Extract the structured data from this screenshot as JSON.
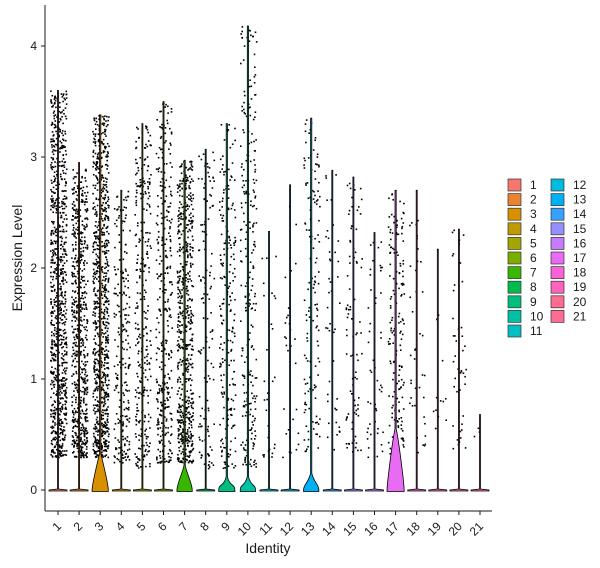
{
  "chart_data": {
    "type": "violin",
    "xlabel": "Identity",
    "ylabel": "Expression Level",
    "ylim": [
      -0.2,
      4.25
    ],
    "yticks": [
      0,
      1,
      2,
      3,
      4
    ],
    "grid": false,
    "legend_position": "right",
    "legend_columns": 2,
    "categories": [
      "1",
      "2",
      "3",
      "4",
      "5",
      "6",
      "7",
      "8",
      "9",
      "10",
      "11",
      "12",
      "13",
      "14",
      "15",
      "16",
      "17",
      "18",
      "19",
      "20",
      "21"
    ],
    "colors": [
      "#F8766D",
      "#EA8331",
      "#D89000",
      "#C09B00",
      "#A3A500",
      "#7CAE00",
      "#39B600",
      "#00BB4E",
      "#00BF7D",
      "#00C1A3",
      "#00BFC4",
      "#00BAE0",
      "#00B0F6",
      "#35A2FF",
      "#9590FF",
      "#C77CFF",
      "#E76BF3",
      "#FA62DB",
      "#FF62BC",
      "#FF6C91",
      "#FF6C91"
    ],
    "violins": [
      {
        "id": "1",
        "max": 3.6,
        "n_points": 900,
        "hump_height": 0.0,
        "hump_width": 0.0,
        "point_min": 0.3,
        "point_max": 3.6
      },
      {
        "id": "2",
        "max": 2.95,
        "n_points": 650,
        "hump_height": 0.0,
        "hump_width": 0.0,
        "point_min": 0.3,
        "point_max": 2.9
      },
      {
        "id": "3",
        "max": 3.38,
        "n_points": 900,
        "hump_height": 0.33,
        "hump_width": 0.9,
        "point_min": 0.3,
        "point_max": 3.38
      },
      {
        "id": "4",
        "max": 2.7,
        "n_points": 230,
        "hump_height": 0.0,
        "hump_width": 0.0,
        "point_min": 0.25,
        "point_max": 2.7
      },
      {
        "id": "5",
        "max": 3.3,
        "n_points": 300,
        "hump_height": 0.0,
        "hump_width": 0.0,
        "point_min": 0.2,
        "point_max": 3.3
      },
      {
        "id": "6",
        "max": 3.5,
        "n_points": 350,
        "hump_height": 0.0,
        "hump_width": 0.0,
        "point_min": 0.25,
        "point_max": 3.5
      },
      {
        "id": "7",
        "max": 2.97,
        "n_points": 650,
        "hump_height": 0.22,
        "hump_width": 0.85,
        "point_min": 0.25,
        "point_max": 2.97
      },
      {
        "id": "8",
        "max": 3.07,
        "n_points": 130,
        "hump_height": 0.0,
        "hump_width": 0.0,
        "point_min": 0.2,
        "point_max": 3.05
      },
      {
        "id": "9",
        "max": 3.3,
        "n_points": 220,
        "hump_height": 0.12,
        "hump_width": 0.9,
        "point_min": 0.2,
        "point_max": 3.3
      },
      {
        "id": "10",
        "max": 4.18,
        "n_points": 260,
        "hump_height": 0.12,
        "hump_width": 0.85,
        "point_min": 0.2,
        "point_max": 4.18
      },
      {
        "id": "11",
        "max": 2.33,
        "n_points": 30,
        "hump_height": 0.0,
        "hump_width": 0.0,
        "point_min": 0.3,
        "point_max": 2.33
      },
      {
        "id": "12",
        "max": 2.75,
        "n_points": 30,
        "hump_height": 0.0,
        "hump_width": 0.0,
        "point_min": 0.3,
        "point_max": 2.75
      },
      {
        "id": "13",
        "max": 3.35,
        "n_points": 140,
        "hump_height": 0.15,
        "hump_width": 0.85,
        "point_min": 0.35,
        "point_max": 3.35
      },
      {
        "id": "14",
        "max": 2.88,
        "n_points": 45,
        "hump_height": 0.0,
        "hump_width": 0.0,
        "point_min": 0.3,
        "point_max": 2.88
      },
      {
        "id": "15",
        "max": 2.82,
        "n_points": 90,
        "hump_height": 0.0,
        "hump_width": 0.0,
        "point_min": 0.35,
        "point_max": 2.82
      },
      {
        "id": "16",
        "max": 2.32,
        "n_points": 50,
        "hump_height": 0.0,
        "hump_width": 0.0,
        "point_min": 0.3,
        "point_max": 2.32
      },
      {
        "id": "17",
        "max": 2.7,
        "n_points": 170,
        "hump_height": 0.55,
        "hump_width": 0.95,
        "point_min": 0.3,
        "point_max": 2.7
      },
      {
        "id": "18",
        "max": 2.7,
        "n_points": 40,
        "hump_height": 0.0,
        "hump_width": 0.0,
        "point_min": 0.3,
        "point_max": 2.7
      },
      {
        "id": "19",
        "max": 2.17,
        "n_points": 12,
        "hump_height": 0.0,
        "hump_width": 0.0,
        "point_min": 0.3,
        "point_max": 2.17
      },
      {
        "id": "20",
        "max": 2.35,
        "n_points": 45,
        "hump_height": 0.0,
        "hump_width": 0.0,
        "point_min": 0.35,
        "point_max": 2.35
      },
      {
        "id": "21",
        "max": 0.68,
        "n_points": 3,
        "hump_height": 0.0,
        "hump_width": 0.0,
        "point_min": 0.25,
        "point_max": 0.68
      }
    ]
  }
}
